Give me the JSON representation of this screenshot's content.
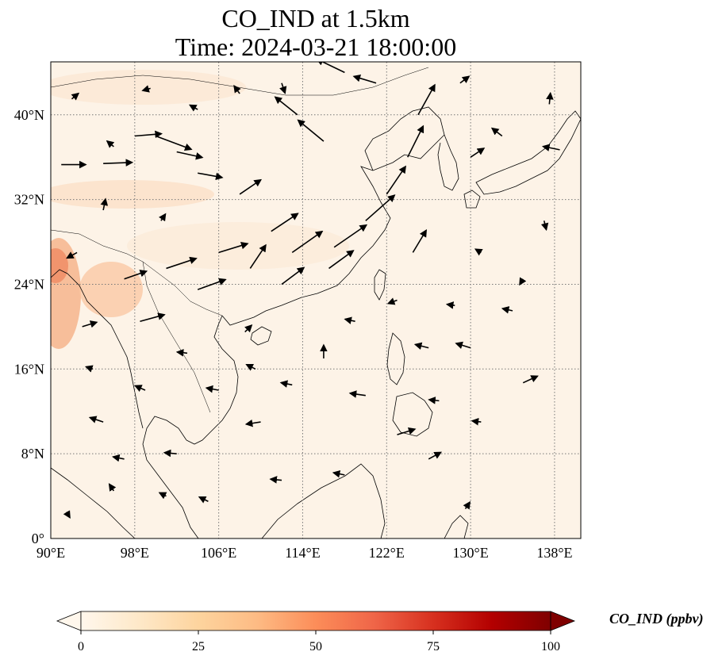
{
  "title": {
    "line1": "CO_IND at 1.5km",
    "line2": "Time: 2024-03-21 18:00:00"
  },
  "map": {
    "lon_range": [
      90,
      140.5
    ],
    "lat_range": [
      0,
      45
    ],
    "lon_ticks": [
      {
        "value": 90,
        "label": "90°E"
      },
      {
        "value": 98,
        "label": "98°E"
      },
      {
        "value": 106,
        "label": "106°E"
      },
      {
        "value": 114,
        "label": "114°E"
      },
      {
        "value": 122,
        "label": "122°E"
      },
      {
        "value": 130,
        "label": "130°E"
      },
      {
        "value": 138,
        "label": "138°E"
      }
    ],
    "lat_ticks": [
      {
        "value": 0,
        "label": "0°"
      },
      {
        "value": 8,
        "label": "8°N"
      },
      {
        "value": 16,
        "label": "16°N"
      },
      {
        "value": 24,
        "label": "24°N"
      },
      {
        "value": 32,
        "label": "32°N"
      },
      {
        "value": 40,
        "label": "40°N"
      }
    ],
    "gridlines": true,
    "coastline_color": "#000000",
    "background_color": "#fdf3e7"
  },
  "colorbar": {
    "title": "CO_IND (ppbv)",
    "min": 0,
    "max": 100,
    "ticks": [
      0,
      25,
      50,
      75,
      100
    ],
    "tick_labels": [
      "0",
      "25",
      "50",
      "75",
      "100"
    ],
    "colormap": "OrRd",
    "colors": [
      "#fff7ec",
      "#fee8c8",
      "#fdd49e",
      "#fdbb84",
      "#fc8d59",
      "#ef6548",
      "#d7301f",
      "#b30000",
      "#7f0000"
    ],
    "extend": "both"
  },
  "wind_vectors": {
    "description": "",
    "arrows": [
      {
        "lon": 91,
        "lat": 35.3,
        "u": 2.2,
        "v": 0
      },
      {
        "lon": 95,
        "lat": 35.4,
        "u": 2.6,
        "v": 0.1
      },
      {
        "lon": 98,
        "lat": 38,
        "u": 2.4,
        "v": 0.2
      },
      {
        "lon": 100,
        "lat": 38,
        "u": 3.2,
        "v": -1.2
      },
      {
        "lon": 102,
        "lat": 36.5,
        "u": 2.3,
        "v": -0.5
      },
      {
        "lon": 104,
        "lat": 34.5,
        "u": 2.2,
        "v": -0.4
      },
      {
        "lon": 108,
        "lat": 32.5,
        "u": 1.9,
        "v": 1.3
      },
      {
        "lon": 111,
        "lat": 29,
        "u": 2.4,
        "v": 1.6
      },
      {
        "lon": 113,
        "lat": 27,
        "u": 2.7,
        "v": 1.9
      },
      {
        "lon": 117,
        "lat": 27.5,
        "u": 2.9,
        "v": 2.0
      },
      {
        "lon": 120,
        "lat": 30,
        "u": 2.6,
        "v": 2.3
      },
      {
        "lon": 122,
        "lat": 32.5,
        "u": 1.7,
        "v": 2.5
      },
      {
        "lon": 124,
        "lat": 36,
        "u": 1.4,
        "v": 2.8
      },
      {
        "lon": 125,
        "lat": 40,
        "u": 1.5,
        "v": 2.7
      },
      {
        "lon": 118,
        "lat": 44,
        "u": -2.5,
        "v": 1.2
      },
      {
        "lon": 113.5,
        "lat": 40,
        "u": -2.0,
        "v": 1.6
      },
      {
        "lon": 116,
        "lat": 37.5,
        "u": -2.3,
        "v": 1.9
      },
      {
        "lon": 106,
        "lat": 27,
        "u": 2.6,
        "v": 0.8
      },
      {
        "lon": 101,
        "lat": 25.5,
        "u": 2.7,
        "v": 0.9
      },
      {
        "lon": 97,
        "lat": 24.5,
        "u": 2.0,
        "v": 0.7
      },
      {
        "lon": 98.5,
        "lat": 20.5,
        "u": 2.2,
        "v": 0.6
      },
      {
        "lon": 104,
        "lat": 23.5,
        "u": 2.5,
        "v": 0.9
      },
      {
        "lon": 109,
        "lat": 25.5,
        "u": 1.4,
        "v": 2.1
      },
      {
        "lon": 124.5,
        "lat": 27,
        "u": 1.2,
        "v": 2.0
      },
      {
        "lon": 112,
        "lat": 24,
        "u": 2.0,
        "v": 1.5
      },
      {
        "lon": 116.5,
        "lat": 25.5,
        "u": 2.2,
        "v": 1.6
      },
      {
        "lon": 95,
        "lat": 31,
        "u": 0.2,
        "v": 1.0
      },
      {
        "lon": 130,
        "lat": 36,
        "u": 1.2,
        "v": 0.8
      },
      {
        "lon": 133,
        "lat": 38,
        "u": -0.9,
        "v": 0.7
      },
      {
        "lon": 137,
        "lat": 30,
        "u": 0.2,
        "v": -0.8
      },
      {
        "lon": 135,
        "lat": 14.7,
        "u": 1.3,
        "v": 0.6
      },
      {
        "lon": 116,
        "lat": 17,
        "u": 0,
        "v": 1.2
      },
      {
        "lon": 126,
        "lat": 18,
        "u": -1.2,
        "v": 0.3
      },
      {
        "lon": 130,
        "lat": 18,
        "u": -1.3,
        "v": 0.4
      },
      {
        "lon": 120,
        "lat": 13.5,
        "u": -1.4,
        "v": 0.2
      },
      {
        "lon": 123,
        "lat": 9.8,
        "u": 1.6,
        "v": 0.5
      },
      {
        "lon": 110,
        "lat": 11,
        "u": -1.3,
        "v": -0.2
      },
      {
        "lon": 102,
        "lat": 8,
        "u": -1.1,
        "v": 0.1
      },
      {
        "lon": 95,
        "lat": 11,
        "u": -1.2,
        "v": 0.4
      },
      {
        "lon": 97,
        "lat": 7.5,
        "u": -1.0,
        "v": 0.2
      },
      {
        "lon": 99,
        "lat": 14,
        "u": -0.9,
        "v": 0.4
      },
      {
        "lon": 106,
        "lat": 14,
        "u": -1.1,
        "v": 0.2
      },
      {
        "lon": 113,
        "lat": 14.5,
        "u": -1.0,
        "v": 0.2
      },
      {
        "lon": 127,
        "lat": 13,
        "u": -0.9,
        "v": 0.1
      },
      {
        "lon": 131,
        "lat": 11,
        "u": -0.8,
        "v": 0.1
      },
      {
        "lon": 126,
        "lat": 7.5,
        "u": 1.1,
        "v": 0.6
      },
      {
        "lon": 129.5,
        "lat": 2.8,
        "u": 0.4,
        "v": 0.6
      },
      {
        "lon": 105,
        "lat": 3.5,
        "u": -0.8,
        "v": 0.4
      },
      {
        "lon": 112,
        "lat": 5.5,
        "u": -1.0,
        "v": 0.1
      },
      {
        "lon": 118,
        "lat": 6,
        "u": -1.0,
        "v": 0.2
      },
      {
        "lon": 93,
        "lat": 20,
        "u": 1.3,
        "v": 0.4
      },
      {
        "lon": 92.5,
        "lat": 27,
        "u": -0.9,
        "v": -0.5
      },
      {
        "lon": 100.5,
        "lat": 30,
        "u": 0.4,
        "v": 0.6
      },
      {
        "lon": 104,
        "lat": 40.5,
        "u": -0.7,
        "v": 0.4
      },
      {
        "lon": 108,
        "lat": 42,
        "u": -0.5,
        "v": 0.7
      },
      {
        "lon": 112,
        "lat": 43,
        "u": 0.3,
        "v": -0.9
      },
      {
        "lon": 121,
        "lat": 43,
        "u": -2.0,
        "v": 0.6
      },
      {
        "lon": 129,
        "lat": 43,
        "u": 0.8,
        "v": 0.6
      },
      {
        "lon": 137.5,
        "lat": 41,
        "u": 0.1,
        "v": 1.0
      },
      {
        "lon": 135,
        "lat": 24.5,
        "u": -0.3,
        "v": -0.5
      },
      {
        "lon": 131,
        "lat": 27,
        "u": -0.5,
        "v": 0.3
      },
      {
        "lon": 128.5,
        "lat": 22,
        "u": -0.7,
        "v": 0.1
      },
      {
        "lon": 119,
        "lat": 20.5,
        "u": -0.9,
        "v": 0.2
      },
      {
        "lon": 123,
        "lat": 22.5,
        "u": -0.8,
        "v": -0.3
      },
      {
        "lon": 108.5,
        "lat": 19.5,
        "u": 0.6,
        "v": 0.6
      },
      {
        "lon": 103,
        "lat": 17.5,
        "u": -0.9,
        "v": 0.1
      },
      {
        "lon": 109.5,
        "lat": 16,
        "u": -0.8,
        "v": 0.4
      },
      {
        "lon": 94,
        "lat": 16,
        "u": -0.6,
        "v": 0.2
      },
      {
        "lon": 96,
        "lat": 4.5,
        "u": -0.4,
        "v": 0.6
      },
      {
        "lon": 101,
        "lat": 4,
        "u": -0.6,
        "v": 0.3
      },
      {
        "lon": 91.5,
        "lat": 2.5,
        "u": 0.3,
        "v": -0.5
      },
      {
        "lon": 134,
        "lat": 21.5,
        "u": -0.9,
        "v": 0.2
      },
      {
        "lon": 138.5,
        "lat": 36.7,
        "u": -1.5,
        "v": 0.3
      },
      {
        "lon": 96,
        "lat": 37,
        "u": -0.6,
        "v": 0.5
      },
      {
        "lon": 92,
        "lat": 41.5,
        "u": 0.6,
        "v": 0.5
      },
      {
        "lon": 99.5,
        "lat": 42.5,
        "u": -0.7,
        "v": -0.2
      }
    ]
  }
}
